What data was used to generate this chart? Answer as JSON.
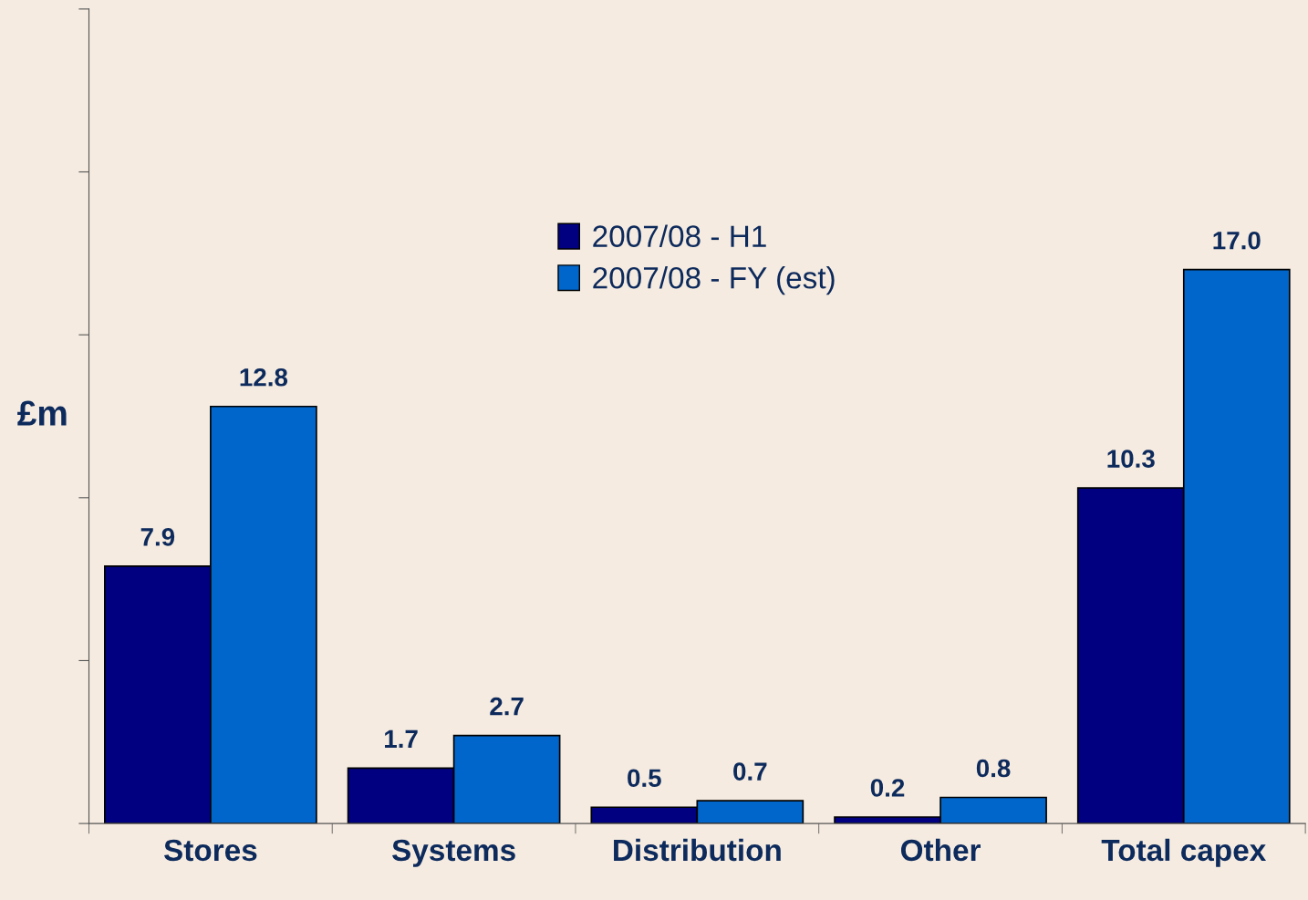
{
  "chart_data": {
    "type": "bar",
    "ylabel": "£m",
    "categories": [
      "Stores",
      "Systems",
      "Distribution",
      "Other",
      "Total capex"
    ],
    "series": [
      {
        "name": "2007/08 - H1",
        "color": "#000080",
        "values": [
          7.9,
          1.7,
          0.5,
          0.2,
          10.3
        ],
        "value_labels": [
          "7.9",
          "1.7",
          "0.5",
          "0.2",
          "10.3"
        ]
      },
      {
        "name": "2007/08 - FY (est)",
        "color": "#0066cc",
        "values": [
          12.8,
          2.7,
          0.7,
          0.8,
          17.0
        ],
        "value_labels": [
          "12.8",
          "2.7",
          "0.7",
          "0.8",
          "17.0"
        ]
      }
    ],
    "ylim": [
      0,
      25
    ],
    "yticks": [
      {
        "value": 0,
        "label": null
      },
      {
        "value": 5,
        "label": null
      },
      {
        "value": 10,
        "label": null
      },
      {
        "value": 15,
        "label": null
      },
      {
        "value": 20,
        "label": null
      },
      {
        "value": 25,
        "label": null
      }
    ],
    "tick_labels": "x",
    "legend": "top",
    "grid": false
  }
}
